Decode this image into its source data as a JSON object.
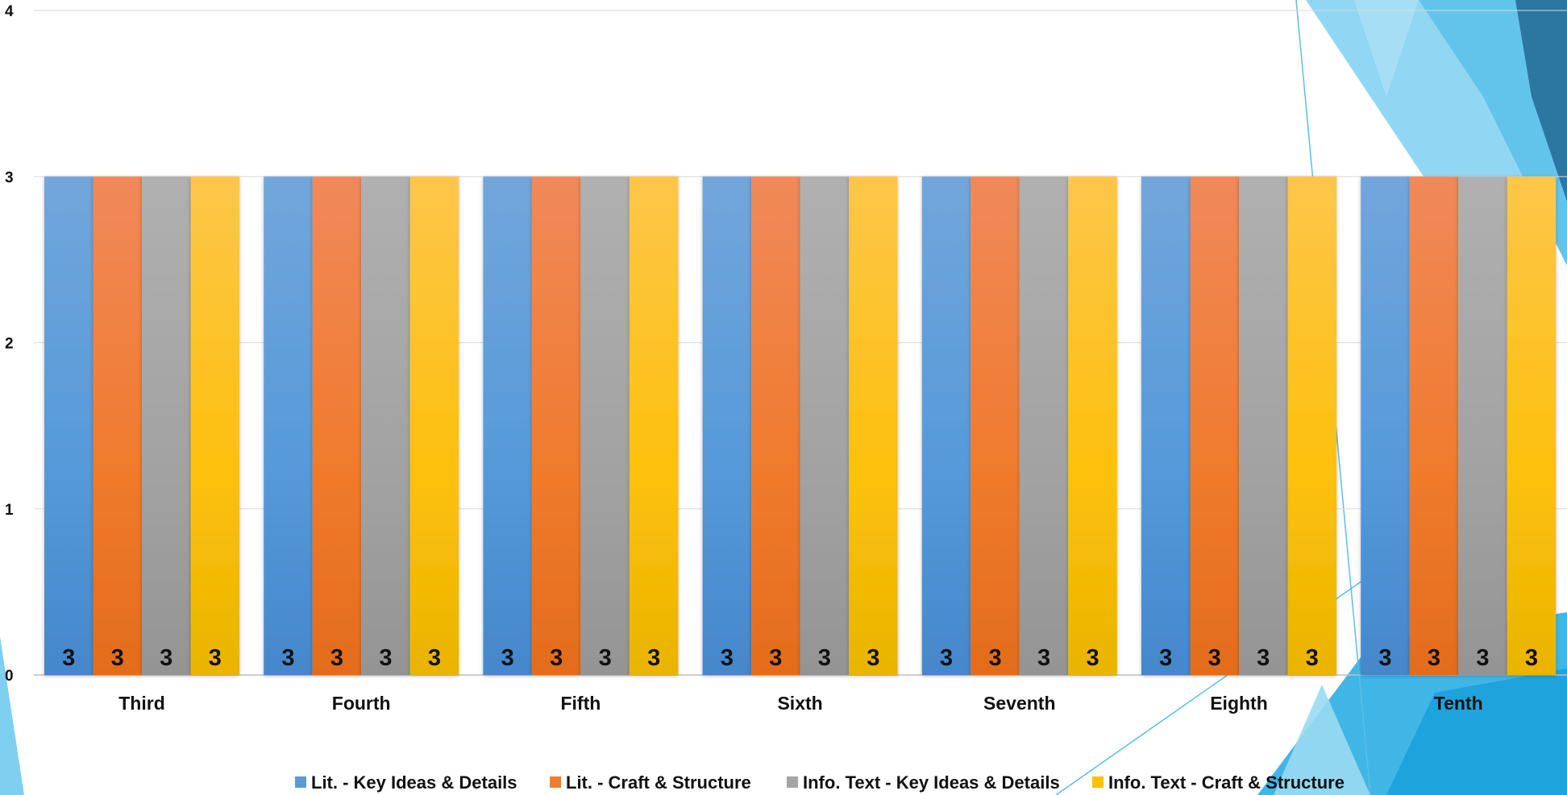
{
  "chart_data": {
    "type": "bar",
    "categories": [
      "Third",
      "Fourth",
      "Fifth",
      "Sixth",
      "Seventh",
      "Eighth",
      "Tenth"
    ],
    "series": [
      {
        "name": "Lit. - Key Ideas & Details",
        "color": "#5B9BD5",
        "values": [
          3,
          3,
          3,
          3,
          3,
          3,
          3
        ]
      },
      {
        "name": "Lit. - Craft & Structure",
        "color": "#ED7D31",
        "values": [
          3,
          3,
          3,
          3,
          3,
          3,
          3
        ]
      },
      {
        "name": "Info. Text - Key Ideas & Details",
        "color": "#A5A5A5",
        "values": [
          3,
          3,
          3,
          3,
          3,
          3,
          3
        ]
      },
      {
        "name": "Info. Text - Craft & Structure",
        "color": "#FFC000",
        "values": [
          3,
          3,
          3,
          3,
          3,
          3,
          3
        ]
      }
    ],
    "y_ticks": [
      0,
      1,
      2,
      3,
      4
    ],
    "ylim": [
      0,
      4
    ],
    "grid": true,
    "data_labels": true,
    "legend_position": "bottom",
    "title": "",
    "xlabel": "",
    "ylabel": ""
  },
  "background": {
    "style": "facet-triangles-top-right",
    "colors": [
      "#7FD0F0",
      "#5BC3EA",
      "#2E75A0",
      "#1FA3DC"
    ]
  }
}
